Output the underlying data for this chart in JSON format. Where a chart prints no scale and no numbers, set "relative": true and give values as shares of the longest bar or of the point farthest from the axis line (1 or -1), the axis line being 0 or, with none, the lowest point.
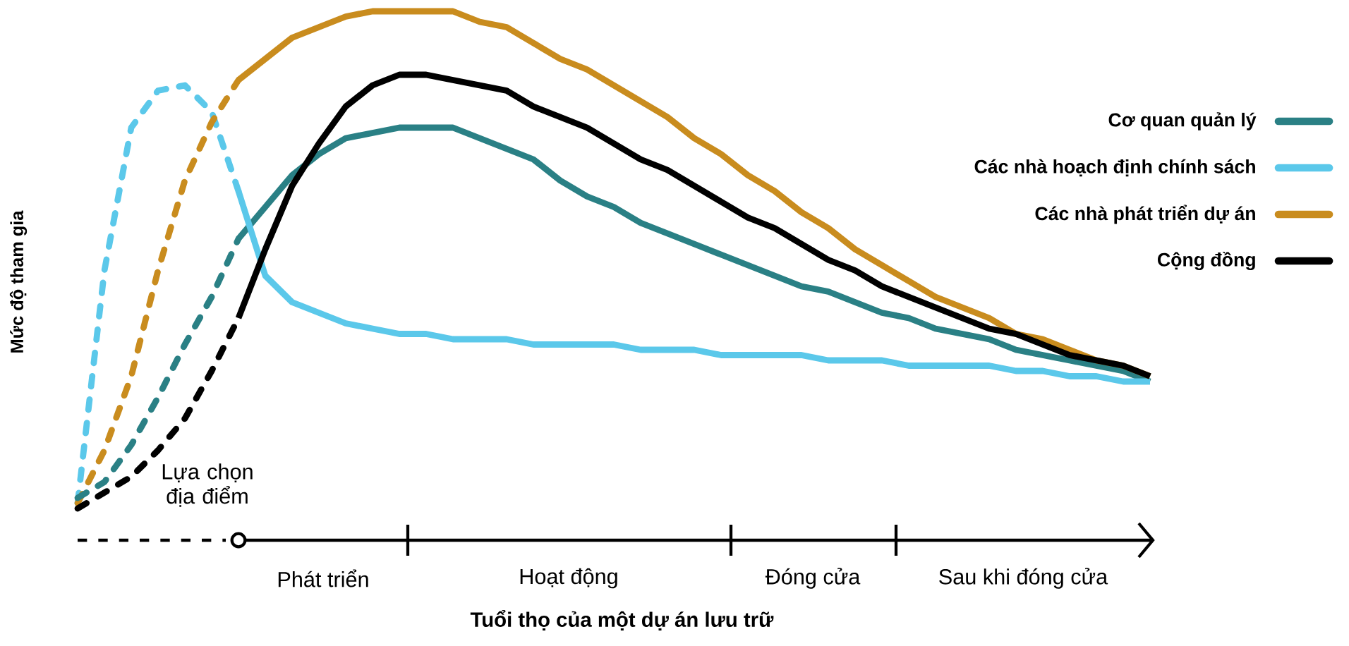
{
  "chart_data": {
    "type": "line",
    "relative": true,
    "xlabel": "Tuổi thọ của một dự án lưu trữ",
    "ylabel": "Mức độ tham gia",
    "legend": "right",
    "categories": [
      null,
      null,
      null,
      null,
      null,
      null,
      null,
      null,
      null,
      null,
      null,
      null,
      null,
      null,
      null,
      null,
      null,
      null,
      null,
      null,
      null,
      null,
      null,
      null,
      null,
      null,
      null,
      null,
      null,
      null,
      null,
      null,
      null,
      null,
      null,
      null,
      null,
      null,
      null,
      null,
      null
    ],
    "annotations": [
      "Lựa chọn địa điểm",
      "Phát triển",
      "Hoạt động",
      "Đóng cửa",
      "Sau khi đóng cửa"
    ],
    "series": [
      {
        "color": "#5bc8ea",
        "line_style": "dotted",
        "values": [
          0.07,
          0.51,
          0.78,
          0.85,
          0.86,
          0.81,
          0.66,
          null,
          null,
          null,
          null,
          null,
          null,
          null,
          null,
          null,
          null,
          null,
          null,
          null,
          null,
          null,
          null,
          null,
          null,
          null,
          null,
          null,
          null,
          null,
          null,
          null,
          null,
          null,
          null,
          null,
          null,
          null,
          null,
          null,
          null
        ]
      },
      {
        "color": "#c98c1e",
        "line_style": "dotted",
        "values": [
          0.07,
          0.17,
          0.31,
          0.51,
          0.68,
          0.79,
          0.87,
          null,
          null,
          null,
          null,
          null,
          null,
          null,
          null,
          null,
          null,
          null,
          null,
          null,
          null,
          null,
          null,
          null,
          null,
          null,
          null,
          null,
          null,
          null,
          null,
          null,
          null,
          null,
          null,
          null,
          null,
          null,
          null,
          null,
          null
        ]
      },
      {
        "color": "#2a8085",
        "line_style": "dotted",
        "values": [
          0.08,
          0.11,
          0.18,
          0.27,
          0.37,
          0.46,
          0.57,
          null,
          null,
          null,
          null,
          null,
          null,
          null,
          null,
          null,
          null,
          null,
          null,
          null,
          null,
          null,
          null,
          null,
          null,
          null,
          null,
          null,
          null,
          null,
          null,
          null,
          null,
          null,
          null,
          null,
          null,
          null,
          null,
          null,
          null
        ]
      },
      {
        "color": "#000000",
        "line_style": "dotted",
        "values": [
          0.06,
          0.09,
          0.12,
          0.17,
          0.23,
          0.32,
          0.42,
          null,
          null,
          null,
          null,
          null,
          null,
          null,
          null,
          null,
          null,
          null,
          null,
          null,
          null,
          null,
          null,
          null,
          null,
          null,
          null,
          null,
          null,
          null,
          null,
          null,
          null,
          null,
          null,
          null,
          null,
          null,
          null,
          null,
          null
        ]
      },
      {
        "name": "Cơ quan quản lý",
        "color": "#2a8085",
        "line_style": "solid",
        "values": [
          null,
          null,
          null,
          null,
          null,
          null,
          0.57,
          0.63,
          0.69,
          0.73,
          0.76,
          0.77,
          0.78,
          0.78,
          0.78,
          0.76,
          0.74,
          0.72,
          0.68,
          0.65,
          0.63,
          0.6,
          0.58,
          0.56,
          0.54,
          0.52,
          0.5,
          0.48,
          0.47,
          0.45,
          0.43,
          0.42,
          0.4,
          0.39,
          0.38,
          0.36,
          0.35,
          0.34,
          0.33,
          0.32,
          0.3
        ]
      },
      {
        "name": "Các nhà hoạch định chính sách",
        "color": "#5bc8ea",
        "line_style": "solid",
        "values": [
          null,
          null,
          null,
          null,
          null,
          null,
          0.66,
          0.5,
          0.45,
          0.43,
          0.41,
          0.4,
          0.39,
          0.39,
          0.38,
          0.38,
          0.38,
          0.37,
          0.37,
          0.37,
          0.37,
          0.36,
          0.36,
          0.36,
          0.35,
          0.35,
          0.35,
          0.35,
          0.34,
          0.34,
          0.34,
          0.33,
          0.33,
          0.33,
          0.33,
          0.32,
          0.32,
          0.31,
          0.31,
          0.3,
          0.3
        ]
      },
      {
        "name": "Các nhà phát triển dự án",
        "color": "#c98c1e",
        "line_style": "solid",
        "values": [
          null,
          null,
          null,
          null,
          null,
          null,
          0.87,
          0.91,
          0.95,
          0.97,
          0.99,
          1.0,
          1.0,
          1.0,
          1.0,
          0.98,
          0.97,
          0.94,
          0.91,
          0.89,
          0.86,
          0.83,
          0.8,
          0.76,
          0.73,
          0.69,
          0.66,
          0.62,
          0.59,
          0.55,
          0.52,
          0.49,
          0.46,
          0.44,
          0.42,
          0.39,
          0.38,
          0.36,
          0.34,
          0.33,
          0.31
        ]
      },
      {
        "name": "Cộng đồng",
        "color": "#000000",
        "line_style": "solid",
        "values": [
          null,
          null,
          null,
          null,
          null,
          null,
          0.42,
          0.55,
          0.67,
          0.75,
          0.82,
          0.86,
          0.88,
          0.88,
          0.87,
          0.86,
          0.85,
          0.82,
          0.8,
          0.78,
          0.75,
          0.72,
          0.7,
          0.67,
          0.64,
          0.61,
          0.59,
          0.56,
          0.53,
          0.51,
          0.48,
          0.46,
          0.44,
          0.42,
          0.4,
          0.39,
          0.37,
          0.35,
          0.34,
          0.33,
          0.31
        ]
      }
    ]
  }
}
